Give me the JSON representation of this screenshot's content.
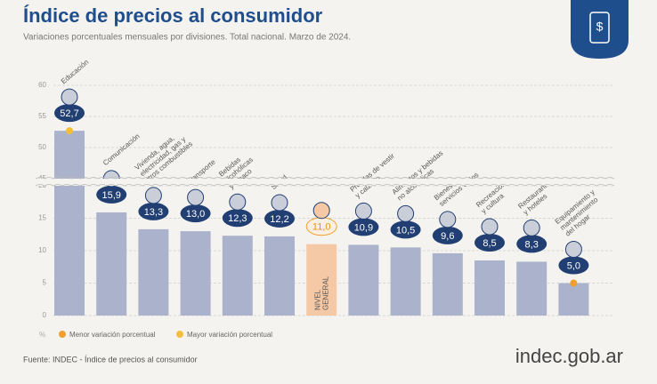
{
  "chart_data": {
    "type": "bar",
    "title": "Índice de precios al consumidor",
    "subtitle": "Variaciones porcentuales mensuales por divisiones. Total nacional. Marzo de 2024.",
    "categories": [
      [
        "Educación"
      ],
      [
        "Comunicación"
      ],
      [
        "Vivienda, agua,",
        "electricidad, gas y",
        "otros combustibles"
      ],
      [
        "Transporte"
      ],
      [
        "Bebidas",
        "alcohólicas",
        "y tabaco"
      ],
      [
        "Salud"
      ],
      [
        "NIVEL",
        "GENERAL"
      ],
      [
        "Prendas de vestir",
        "y calzado"
      ],
      [
        "Alimentos y bebidas",
        "no alcohólicas"
      ],
      [
        "Bienes y",
        "servicios varios"
      ],
      [
        "Recreación",
        "y cultura"
      ],
      [
        "Restaurantes",
        "y hoteles"
      ],
      [
        "Equipamiento y",
        "mantenimiento",
        "del hogar"
      ]
    ],
    "values": [
      52.7,
      15.9,
      13.3,
      13.0,
      12.3,
      12.2,
      11.0,
      10.9,
      10.5,
      9.6,
      8.5,
      8.3,
      5.0
    ],
    "value_labels": [
      "52,7",
      "15,9",
      "13,3",
      "13,0",
      "12,3",
      "12,2",
      "11,0",
      "10,9",
      "10,5",
      "9,6",
      "8,5",
      "8,3",
      "5,0"
    ],
    "color": "#aab3cb",
    "highlight_color": "#f5c9a6",
    "highlight_category": 6,
    "ylim": [
      0,
      60
    ],
    "axis_break": [
      20,
      45
    ],
    "yticks": [
      0,
      5,
      10,
      15,
      20,
      45,
      50,
      55,
      60
    ],
    "grid": true,
    "unit_label": "%",
    "legend": [
      {
        "name": "Menor variación porcentual",
        "color": "#f0a02c"
      },
      {
        "name": "Mayor variación porcentual",
        "color": "#f2be3c"
      }
    ],
    "source": "Fuente: INDEC - Índice de precios al consumidor",
    "brand": "indec.gob.ar"
  }
}
